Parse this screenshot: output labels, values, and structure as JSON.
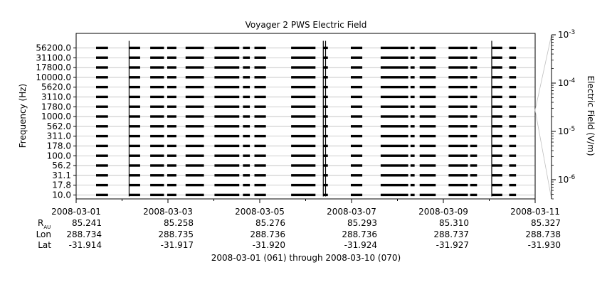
{
  "chart_data": {
    "type": "line",
    "title": "Voyager 2 PWS Electric Field",
    "xlabel": "2008-03-01 (061) through 2008-03-10 (070)",
    "ylabel": "Frequency (Hz)",
    "y2label": "Electric Field (V/m)",
    "x_tick_labels": [
      "2008-03-01",
      "2008-03-03",
      "2008-03-05",
      "2008-03-07",
      "2008-03-09",
      "2008-03-11"
    ],
    "x_tick_values": [
      0,
      2,
      4,
      6,
      8,
      10
    ],
    "x_range_days": [
      0,
      10
    ],
    "frequency_channels": [
      "10.0",
      "17.8",
      "31.1",
      "56.2",
      "100.0",
      "178.0",
      "311.0",
      "562.0",
      "1000.0",
      "1780.0",
      "3110.0",
      "5620.0",
      "10000.0",
      "17800.0",
      "31100.0",
      "56200.0"
    ],
    "electric_field_scale": "log",
    "electric_field_ticks": [
      {
        "base": "10",
        "exp": "-6",
        "value": 1e-06
      },
      {
        "base": "10",
        "exp": "-5",
        "value": 1e-05
      },
      {
        "base": "10",
        "exp": "-4",
        "value": 0.0001
      },
      {
        "base": "10",
        "exp": "-3",
        "value": 0.001
      }
    ],
    "electric_field_range": [
      4e-07,
      0.001
    ],
    "data_segments_days": [
      [
        0.0,
        0.26
      ],
      [
        0.72,
        0.96
      ],
      [
        1.18,
        1.48
      ],
      [
        1.55,
        1.75
      ],
      [
        1.95,
        2.35
      ],
      [
        2.58,
        3.12
      ],
      [
        3.2,
        3.35
      ],
      [
        3.45,
        3.7
      ],
      [
        4.25,
        4.78
      ],
      [
        4.95,
        5.05
      ],
      [
        5.55,
        5.8
      ],
      [
        6.2,
        6.8
      ],
      [
        6.85,
        6.94
      ],
      [
        7.05,
        7.4
      ],
      [
        7.68,
        8.1
      ],
      [
        8.15,
        8.3
      ],
      [
        8.62,
        8.85
      ],
      [
        9.0,
        9.15
      ]
    ],
    "spikes_days": [
      0.72,
      4.95,
      5.0,
      8.62
    ],
    "ephemeris": {
      "row_labels": {
        "r_main": "R",
        "r_sub": "AU",
        "lon": "Lon",
        "lat": "Lat"
      },
      "R": [
        "85.241",
        "85.258",
        "85.276",
        "85.293",
        "85.310",
        "85.327"
      ],
      "Lon": [
        "288.734",
        "288.735",
        "288.736",
        "288.736",
        "288.737",
        "288.738"
      ],
      "Lat": [
        "-31.914",
        "-31.917",
        "-31.920",
        "-31.924",
        "-31.927",
        "-31.930"
      ]
    }
  }
}
